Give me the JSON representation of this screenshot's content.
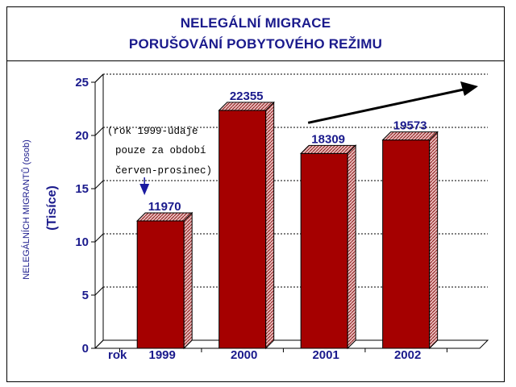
{
  "title": {
    "line1": "NELEGÁLNÍ MIGRACE",
    "line2": "PORUŠOVÁNÍ POBYTOVÉHO REŽIMU"
  },
  "chart_data": {
    "type": "bar",
    "categories": [
      "1999",
      "2000",
      "2001",
      "2002"
    ],
    "values": [
      11970,
      22355,
      18309,
      19573
    ],
    "value_labels": [
      "11970",
      "22355",
      "18309",
      "19573"
    ],
    "ylabel": "NELEGÁLNÍCH MIGRANTŮ (osob)",
    "yunit": "(Tisíce)",
    "xlabel": "rok",
    "yticks": [
      "0",
      "5",
      "10",
      "15",
      "20",
      "25"
    ],
    "ylim": [
      0,
      25000
    ],
    "grid": true,
    "bar_color": "#a50000",
    "note_lines": [
      "(rok 1999-údaje",
      "pouze za období",
      "červen-prosinec)"
    ],
    "trend_arrow": {
      "from_category": "2001",
      "to_category": "after-2002",
      "direction": "up"
    }
  }
}
